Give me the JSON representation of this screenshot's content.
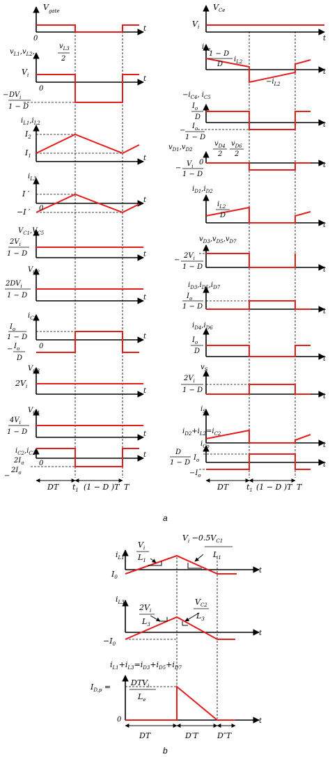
{
  "captions": {
    "a": "a",
    "b": "b"
  },
  "left": {
    "vgate": "V",
    "vgate_sub": "gate",
    "t": "t",
    "zero": "0",
    "vl_head": "v",
    "vl_sub": "L1",
    "vl_mid": ",v",
    "vl_sub2": "L2",
    "vl_mid2": ",",
    "vl_frac_num": "v",
    "vl_frac_sub": "L3",
    "vl_frac_den": "2",
    "vi": "V",
    "vi_sub": "i",
    "dvi_num": "DV",
    "dvi_den": "1 − D",
    "minus": "−",
    "il12": "i",
    "il12_sub": "L1",
    "il12_mid": ",i",
    "il12_sub2": "L2",
    "i2": "I",
    "i2_sub": "2",
    "i1": "I",
    "i1_sub": "1",
    "il3": "i",
    "il3_sub": "L3",
    "iprime": "I ′",
    "miprime": "−I ′",
    "vc15": "V",
    "vc15_sub": "C1",
    "vc15_mid": ",V",
    "vc15_sub2": "C5",
    "twovi_num": "2V",
    "den_1d": "1 − D",
    "vc2": "V",
    "vc2_sub": "C2",
    "twodvi_num": "2DV",
    "ic1": "i",
    "ic1_sub": "C1",
    "io": "I",
    "io_sub": "o",
    "vc3": "V",
    "vc3_sub": "C3",
    "twovi": "2V",
    "vc4": "V",
    "vc4_sub": "C4",
    "fourvi": "4V",
    "ic23": "i",
    "ic23_sub": "C2",
    "ic23_mid": ",i",
    "ic23_sub2": "C3",
    "twoio": "2I",
    "den_d": "D",
    "dt": "DT",
    "t1": "t",
    "t1_sub": "1",
    "omdt": "(1 − D )T",
    "T": "T"
  },
  "right": {
    "vce": "V",
    "vce_sub": "Ce",
    "ice": "i",
    "ice_sub": "Ce",
    "frac_1d": "1 − D",
    "frac_d": "D",
    "il2": "i",
    "il2_sub": "L2",
    "mic45": "−i",
    "mic45_sub": "C4",
    "mic45_mid": ", i",
    "mic45_sub2": "C5",
    "vd12": "v",
    "vd12_sub": "D1",
    "vd12_mid": ",v",
    "vd12_sub2": "D2",
    "vd46_num": "v",
    "vd4_sub": "D4",
    "vd6_sub": "D6",
    "two": "2",
    "id12": "i",
    "id12_sub": "D1",
    "id12_mid": ",i",
    "id12_sub2": "D2",
    "vd357": "v",
    "vd3_sub": "D3",
    "vd5_sub": "D5",
    "vd7_sub": "D7",
    "comma_v": ",v",
    "id357": "i",
    "id3_sub": "D3",
    "id5_sub": "D5",
    "id7_sub": "D7",
    "comma_i": ",i",
    "id46": "i",
    "id4_sub": "D4",
    "id6_sub": "D6",
    "vs": "v",
    "vs_sub": "S",
    "is": "i",
    "is_sub": "S",
    "idsum": "i",
    "idsum_sub": "D2",
    "plus": "+",
    "il2b": "i",
    "ic2b": "i",
    "ic2b_sub": "C2",
    "eq": "=",
    "ico": "i",
    "ico_sub": "Co",
    "d_over": "D",
    "mio": "−I"
  },
  "bottom": {
    "il1": "i",
    "il1_sub": "L1",
    "i0": "I",
    "i0_sub": "0",
    "s1_num": "V",
    "s1_num_sub": "i",
    "s1_den": "L",
    "s1_den_sub": "1",
    "s2_num": "V",
    "s2_num_sub": "i",
    "s2_num_rest": " −0.5V",
    "s2_num_sub2": "C1",
    "s2_den": "L",
    "s2_den_sub": "1",
    "il3": "i",
    "il3_sub": "L3",
    "mi0": "−I",
    "s3_num": "2V",
    "s3_num_sub": "i",
    "s3_den": "L",
    "s3_den_sub": "3",
    "s4_num": "V",
    "s4_num_sub": "C2",
    "s4_den": "L",
    "s4_den_sub": "3",
    "sum": "i",
    "sum_parts": [
      "L1",
      "L3",
      "D3",
      "D5",
      "D7"
    ],
    "idp": "I",
    "idp_sub": "D,p",
    "idp_eq": " =",
    "idp_num": "DTV",
    "idp_den": "L",
    "idp_den_sub": "e",
    "dt": "DT",
    "dpt": "D′T",
    "dppt": "D″T",
    "t": "t",
    "zero": "0"
  },
  "colors": {
    "waveform": "#e41c1c",
    "axis": "#000000"
  }
}
